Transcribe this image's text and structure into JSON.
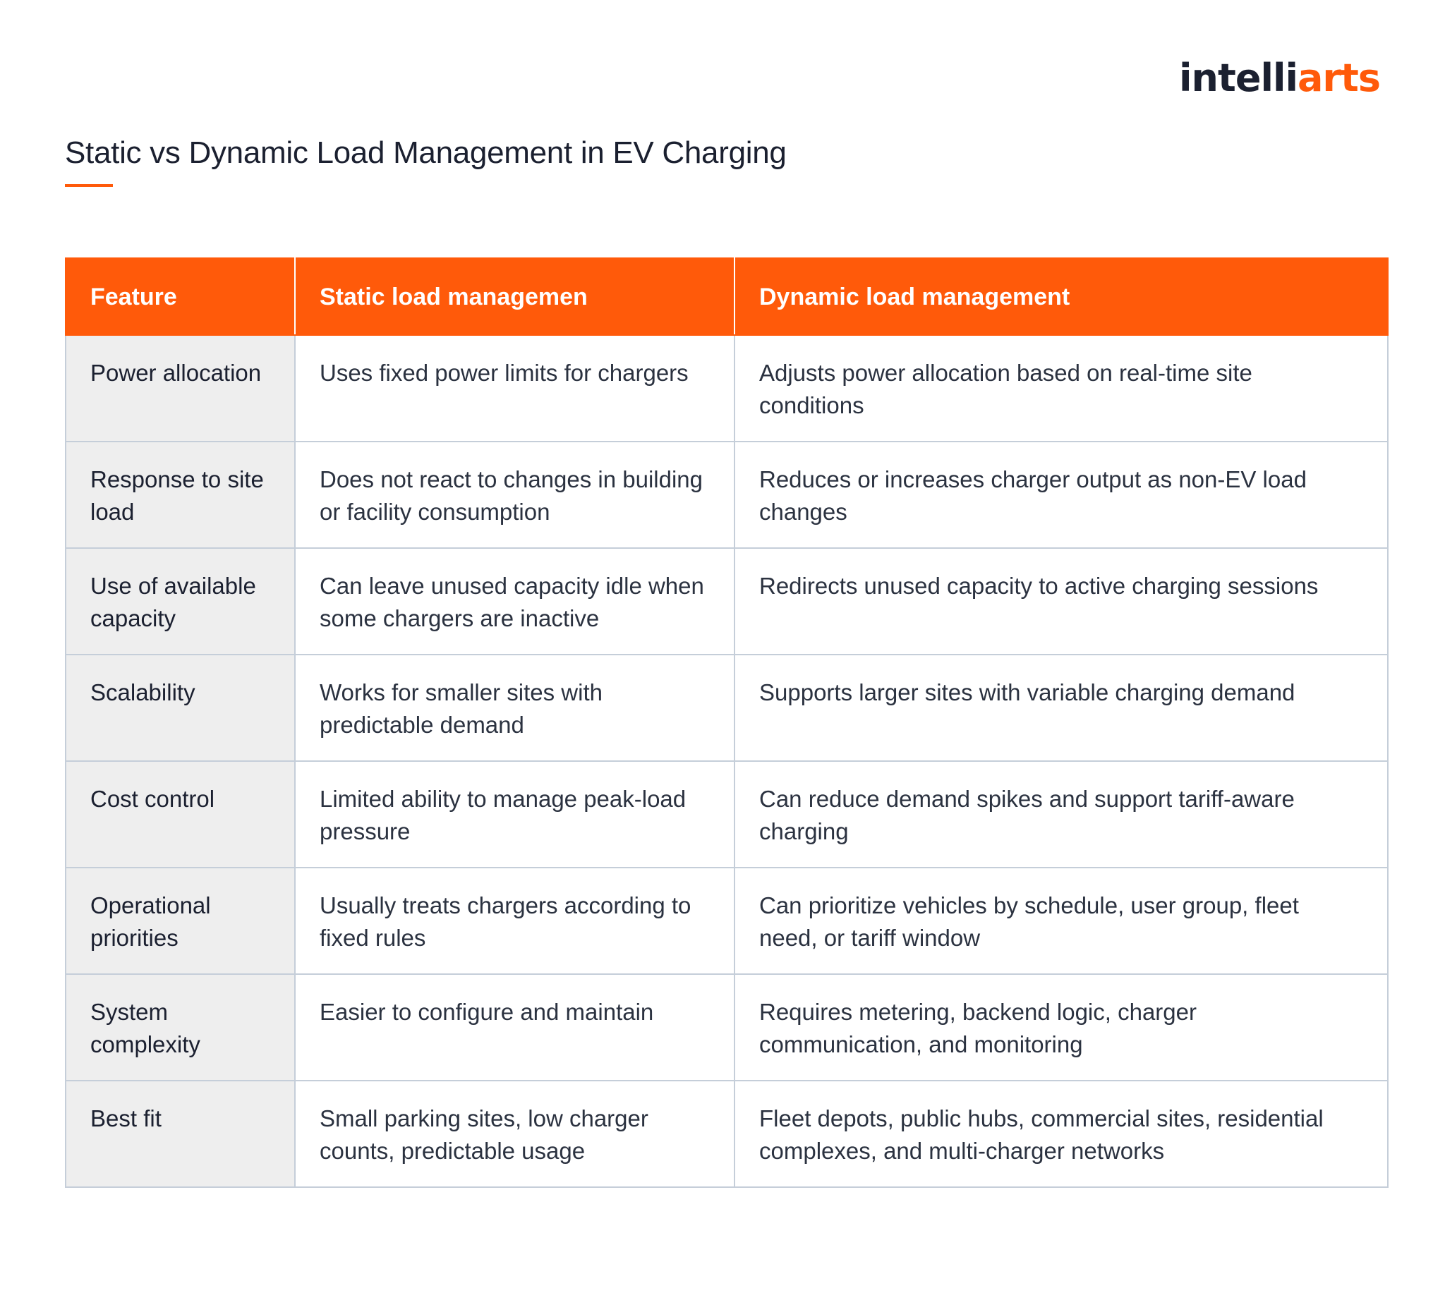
{
  "brand": {
    "logo_dark": "intelli",
    "logo_orange": "arts",
    "accent_color": "#ff5a0a"
  },
  "title": "Static vs Dynamic Load Management in EV Charging",
  "table": {
    "headers": [
      "Feature",
      "Static load managemen",
      "Dynamic load management"
    ],
    "rows": [
      [
        "Power allocation",
        "Uses fixed power limits for chargers",
        "Adjusts power allocation based on real-time site conditions"
      ],
      [
        "Response to site load",
        "Does not react to changes in building or facility consumption",
        "Reduces or increases charger output as non-EV load changes"
      ],
      [
        "Use of available capacity",
        "Can leave unused capacity idle when some chargers are inactive",
        "Redirects unused capacity to active charging sessions"
      ],
      [
        "Scalability",
        "Works for smaller sites with predictable demand",
        "Supports larger sites with variable charging demand"
      ],
      [
        "Cost control",
        "Limited ability to manage peak-load pressure",
        "Can reduce demand spikes and support tariff-aware charging"
      ],
      [
        "Operational priorities",
        "Usually treats chargers according to fixed rules",
        "Can prioritize vehicles by schedule, user group, fleet need, or tariff window"
      ],
      [
        "System complexity",
        "Easier to configure and maintain",
        "Requires metering, backend logic, charger communication, and monitoring"
      ],
      [
        "Best fit",
        "Small parking sites, low charger counts, predictable usage",
        "Fleet depots, public hubs, commercial sites, residential complexes, and multi-charger networks"
      ]
    ]
  }
}
